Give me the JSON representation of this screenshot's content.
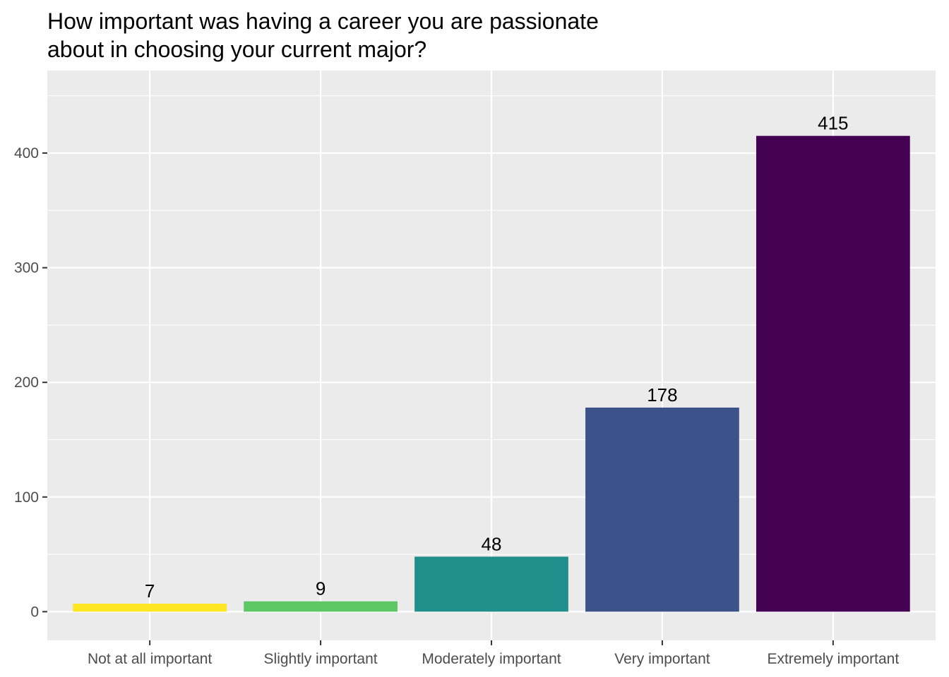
{
  "chart_data": {
    "type": "bar",
    "title_lines": [
      "How important was having a career you are passionate",
      "about in choosing your current major?"
    ],
    "xlabel": "",
    "ylabel": "",
    "categories": [
      "Not at all important",
      "Slightly important",
      "Moderately important",
      "Very important",
      "Extremely important"
    ],
    "values": [
      7,
      9,
      48,
      178,
      415
    ],
    "colors": [
      "#FDE725",
      "#5DC863",
      "#21908C",
      "#3B528B",
      "#440154"
    ],
    "ylim": [
      -25,
      472
    ],
    "y_ticks": [
      0,
      100,
      200,
      300,
      400
    ],
    "grid": true,
    "legend": "none",
    "panel_background": "#EBEBEB",
    "grid_color": "#FFFFFF"
  }
}
